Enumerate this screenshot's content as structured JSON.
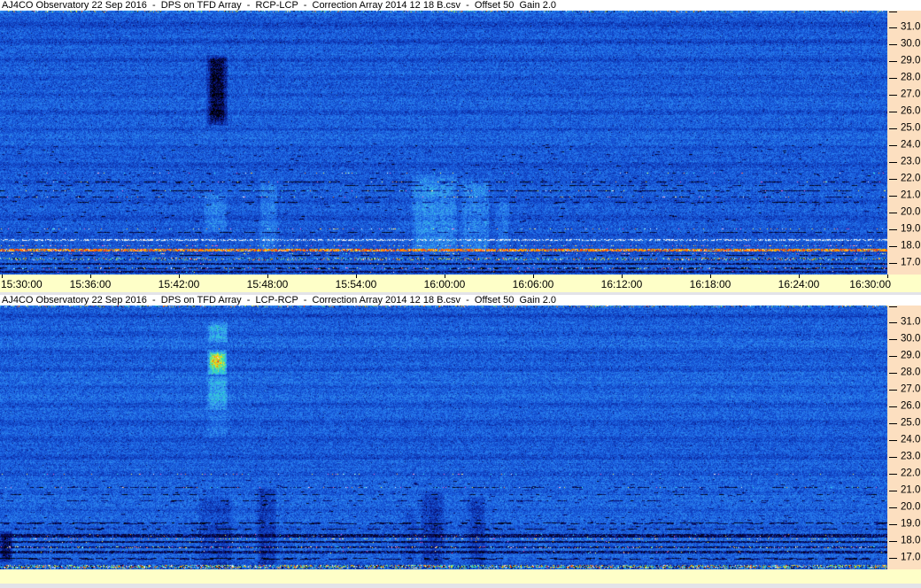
{
  "window": {
    "bg_color": "#e3e3e8",
    "axis_strip_color": "#fcdfc0",
    "time_bar_color": "#feffc8",
    "title_bg_color": "#ffffff"
  },
  "panels": [
    {
      "title": "AJ4CO Observatory 22 Sep 2016  -  DPS on TFD Array  -  RCP-LCP  -  Correction Array 2014 12 18 B.csv  -  Offset 50  Gain 2.0",
      "freq_ticks": [
        "31.0",
        "30.0",
        "29.0",
        "28.0",
        "27.0",
        "26.0",
        "25.0",
        "24.0",
        "23.0",
        "22.0",
        "21.0",
        "20.0",
        "19.0",
        "18.0",
        "17.0"
      ],
      "time_ticks": [
        "15:30:00",
        "15:36:00",
        "15:42:00",
        "15:48:00",
        "15:54:00",
        "16:00:00",
        "16:06:00",
        "16:12:00",
        "16:18:00",
        "16:24:00",
        "16:30:00"
      ]
    },
    {
      "title": "AJ4CO Observatory 22 Sep 2016  -  DPS on TFD Array  -  LCP-RCP  -  Correction Array 2014 12 18 B.csv  -  Offset 50  Gain 2.0",
      "freq_ticks": [
        "31.0",
        "30.0",
        "29.0",
        "28.0",
        "27.0",
        "26.0",
        "25.0",
        "24.0",
        "23.0",
        "22.0",
        "21.0",
        "20.0",
        "19.0",
        "18.0",
        "17.0"
      ],
      "time_ticks": []
    }
  ],
  "palette": [
    [
      0.0,
      [
        0,
        0,
        0
      ]
    ],
    [
      0.06,
      [
        8,
        8,
        90
      ]
    ],
    [
      0.16,
      [
        10,
        40,
        160
      ]
    ],
    [
      0.26,
      [
        20,
        80,
        210
      ]
    ],
    [
      0.34,
      [
        35,
        115,
        235
      ]
    ],
    [
      0.44,
      [
        60,
        165,
        240
      ]
    ],
    [
      0.54,
      [
        40,
        210,
        215
      ]
    ],
    [
      0.64,
      [
        95,
        230,
        130
      ]
    ],
    [
      0.74,
      [
        205,
        235,
        70
      ]
    ],
    [
      0.82,
      [
        255,
        210,
        0
      ]
    ],
    [
      0.9,
      [
        255,
        110,
        0
      ]
    ],
    [
      0.96,
      [
        255,
        30,
        20
      ]
    ],
    [
      1.0,
      [
        255,
        235,
        235
      ]
    ]
  ],
  "chart_data": [
    {
      "type": "heatmap",
      "subtype": "radio-spectrogram",
      "title": "AJ4CO Observatory 22 Sep 2016  -  DPS on TFD Array  -  RCP-LCP  -  Correction Array 2014 12 18 B.csv  -  Offset 50  Gain 2.0",
      "polarization": "RCP-LCP",
      "x_tick_labels": [
        "15:30:00",
        "15:36:00",
        "15:42:00",
        "15:48:00",
        "15:54:00",
        "16:00:00",
        "16:06:00",
        "16:12:00",
        "16:18:00",
        "16:24:00",
        "16:30:00"
      ],
      "y_tick_labels": [
        31.0,
        30.0,
        29.0,
        28.0,
        27.0,
        26.0,
        25.0,
        24.0,
        23.0,
        22.0,
        21.0,
        20.0,
        19.0,
        18.0,
        17.0
      ],
      "legend": "none",
      "grid": "off",
      "render": {
        "seed": 101,
        "base": 0.3,
        "noise": 0.17,
        "band": {
          "period": 19.9,
          "amp": 0.05,
          "phase": 10
        },
        "vstreaks": [
          [
            0,
            1002,
            0,
            2,
            0.12
          ],
          [
            233,
            257,
            50,
            130,
            -0.2
          ],
          [
            237,
            253,
            55,
            125,
            -0.1
          ],
          [
            230,
            256,
            205,
            250,
            0.09
          ],
          [
            293,
            313,
            190,
            272,
            0.09
          ],
          [
            465,
            516,
            185,
            275,
            0.11
          ],
          [
            520,
            552,
            190,
            275,
            0.1
          ],
          [
            560,
            575,
            210,
            268,
            0.06
          ]
        ],
        "rows": [
          [
            0,
            2,
            "multi",
            0.22
          ],
          [
            150,
            240,
            "dashn",
            0.004
          ],
          [
            183,
            184,
            "spk",
            0.06
          ],
          [
            193,
            194,
            "dash",
            0.45
          ],
          [
            193,
            194,
            "spk",
            0.04
          ],
          [
            197,
            198,
            "dash",
            0.3
          ],
          [
            203,
            204,
            "dash",
            0.55
          ],
          [
            203,
            204,
            "spk",
            0.05
          ],
          [
            210,
            211,
            "dash",
            0.4
          ],
          [
            210,
            211,
            "spk",
            0.06
          ],
          [
            216,
            217,
            "dash",
            0.25
          ],
          [
            246,
            247,
            "spk",
            0.1
          ],
          [
            250,
            251,
            "dash",
            0.35
          ],
          [
            258,
            260,
            "white",
            0.45
          ],
          [
            265,
            266,
            "spk",
            0.15
          ],
          [
            269,
            272,
            "red",
            0.78
          ],
          [
            274,
            275,
            "spk",
            0.12
          ],
          [
            276,
            277,
            "dash",
            0.4
          ],
          [
            279,
            282,
            "multi",
            0.45
          ],
          [
            285,
            287,
            "black",
            0.65
          ],
          [
            290,
            292,
            "dash",
            0.5
          ],
          [
            290,
            292,
            "spk",
            0.08
          ],
          [
            294,
            296,
            "black",
            0.5
          ]
        ]
      }
    },
    {
      "type": "heatmap",
      "subtype": "radio-spectrogram",
      "title": "AJ4CO Observatory 22 Sep 2016  -  DPS on TFD Array  -  LCP-RCP  -  Correction Array 2014 12 18 B.csv  -  Offset 50  Gain 2.0",
      "polarization": "LCP-RCP",
      "x_tick_labels": [
        "15:30:00",
        "15:36:00",
        "15:42:00",
        "15:48:00",
        "15:54:00",
        "16:00:00",
        "16:06:00",
        "16:12:00",
        "16:18:00",
        "16:24:00",
        "16:30:00"
      ],
      "y_tick_labels": [
        31.0,
        30.0,
        29.0,
        28.0,
        27.0,
        26.0,
        25.0,
        24.0,
        23.0,
        22.0,
        21.0,
        20.0,
        19.0,
        18.0,
        17.0
      ],
      "legend": "none",
      "grid": "off",
      "render": {
        "seed": 202,
        "base": 0.3,
        "noise": 0.17,
        "band": {
          "period": 19.9,
          "amp": 0.05,
          "phase": 13
        },
        "vstreaks": [
          [
            0,
            1002,
            0,
            2,
            0.1
          ],
          [
            233,
            257,
            18,
            42,
            0.16
          ],
          [
            234,
            256,
            50,
            78,
            0.34
          ],
          [
            237,
            252,
            53,
            70,
            0.18
          ],
          [
            233,
            257,
            80,
            118,
            0.15
          ],
          [
            233,
            257,
            120,
            150,
            0.05
          ],
          [
            290,
            312,
            205,
            295,
            -0.09
          ],
          [
            225,
            262,
            215,
            297,
            -0.07
          ],
          [
            475,
            502,
            210,
            293,
            -0.09
          ],
          [
            528,
            548,
            215,
            293,
            -0.08
          ],
          [
            455,
            470,
            230,
            290,
            -0.05
          ],
          [
            0,
            14,
            255,
            290,
            -0.25
          ]
        ],
        "rows": [
          [
            0,
            2,
            "multi",
            0.26
          ],
          [
            195,
            255,
            "dashn",
            0.004
          ],
          [
            190,
            191,
            "spk",
            0.08
          ],
          [
            205,
            206,
            "dash",
            0.45
          ],
          [
            205,
            206,
            "spk",
            0.05
          ],
          [
            213,
            214,
            "dash",
            0.3
          ],
          [
            220,
            221,
            "dash",
            0.25
          ],
          [
            245,
            247,
            "dash",
            0.5
          ],
          [
            252,
            253,
            "dash",
            0.35
          ],
          [
            258,
            262,
            "black",
            0.7
          ],
          [
            263,
            264,
            "spk",
            0.2
          ],
          [
            266,
            268,
            "black",
            0.75
          ],
          [
            272,
            274,
            "black",
            0.5
          ],
          [
            272,
            274,
            "spk",
            0.1
          ],
          [
            277,
            280,
            "black",
            0.6
          ],
          [
            285,
            287,
            "dash",
            0.5
          ],
          [
            293,
            297,
            "multi",
            0.75
          ]
        ]
      }
    }
  ]
}
